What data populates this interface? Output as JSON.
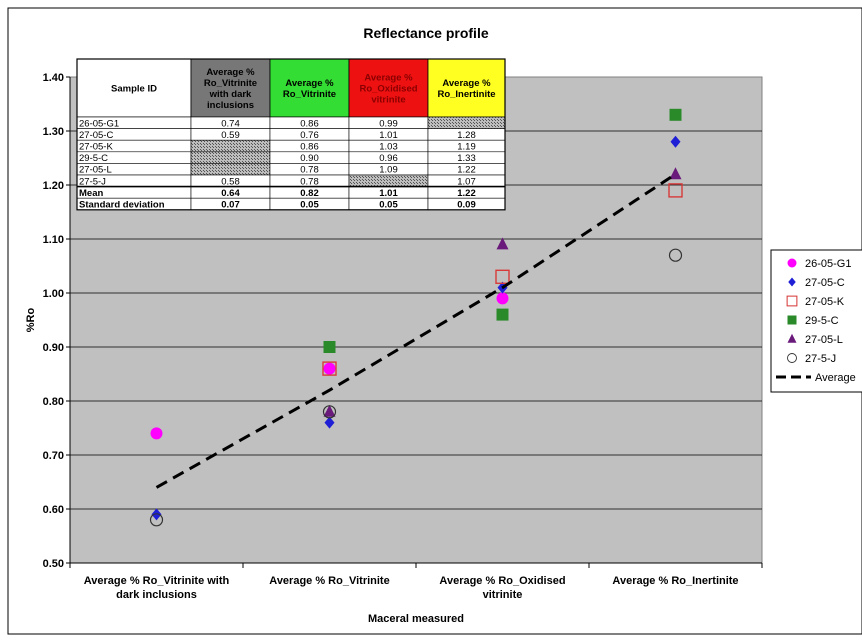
{
  "chart_data": {
    "type": "scatter",
    "title": "Reflectance profile",
    "xlabel": "Maceral measured",
    "ylabel": "%Ro",
    "ylim": [
      0.5,
      1.4
    ],
    "y_ticks": [
      "0.50",
      "0.60",
      "0.70",
      "0.80",
      "0.90",
      "1.00",
      "1.10",
      "1.20",
      "1.30",
      "1.40"
    ],
    "grid": "horizontal",
    "legend_position": "right",
    "categories": [
      [
        "Average % Ro_Vitrinite with",
        "dark inclusions"
      ],
      [
        "Average % Ro_Vitrinite"
      ],
      [
        "Average % Ro_Oxidised",
        "vitrinite"
      ],
      [
        "Average % Ro_Inertinite"
      ]
    ],
    "series": [
      {
        "name": "26-05-G1",
        "marker": "circle-filled",
        "color": "#ff00ff",
        "values": [
          0.74,
          0.86,
          0.99,
          null
        ]
      },
      {
        "name": "27-05-C",
        "marker": "diamond",
        "color": "#1f1fd6",
        "values": [
          0.59,
          0.76,
          1.01,
          1.28
        ]
      },
      {
        "name": "27-05-K",
        "marker": "square-open",
        "color": "#d83a3a",
        "values": [
          null,
          0.86,
          1.03,
          1.19
        ]
      },
      {
        "name": "29-5-C",
        "marker": "square-filled",
        "color": "#2a8a2a",
        "values": [
          null,
          0.9,
          0.96,
          1.33
        ]
      },
      {
        "name": "27-05-L",
        "marker": "triangle",
        "color": "#6a1a7a",
        "values": [
          null,
          0.78,
          1.09,
          1.22
        ]
      },
      {
        "name": "27-5-J",
        "marker": "circle-open",
        "color": "#333333",
        "values": [
          0.58,
          0.78,
          null,
          1.07
        ]
      },
      {
        "name": "Average",
        "marker": "dashed-line",
        "color": "#000000",
        "values": [
          0.64,
          0.82,
          1.01,
          1.22
        ]
      }
    ],
    "table": {
      "headers": [
        {
          "lines": [
            "Sample ID"
          ],
          "color": "#ffffff"
        },
        {
          "lines": [
            "Average %",
            "Ro_Vitrinite",
            "with dark",
            "inclusions"
          ],
          "color": "#777777"
        },
        {
          "lines": [
            "Average %",
            "Ro_Vitrinite"
          ],
          "color": "#33dd33"
        },
        {
          "lines": [
            "Average %",
            "Ro_Oxidised",
            "vitrinite"
          ],
          "color": "#ee1111"
        },
        {
          "lines": [
            "Average %",
            "Ro_Inertinite"
          ],
          "color": "#ffff22"
        }
      ],
      "rows": [
        [
          "26-05-G1",
          "0.74",
          "0.86",
          "0.99",
          ""
        ],
        [
          "27-05-C",
          "0.59",
          "0.76",
          "1.01",
          "1.28"
        ],
        [
          "27-05-K",
          "",
          "0.86",
          "1.03",
          "1.19"
        ],
        [
          "29-5-C",
          "",
          "0.90",
          "0.96",
          "1.33"
        ],
        [
          "27-05-L",
          "",
          "0.78",
          "1.09",
          "1.22"
        ],
        [
          "27-5-J",
          "0.58",
          "0.78",
          "",
          "1.07"
        ]
      ],
      "summary": [
        [
          "Mean",
          "0.64",
          "0.82",
          "1.01",
          "1.22"
        ],
        [
          "Standard deviation",
          "0.07",
          "0.05",
          "0.05",
          "0.09"
        ]
      ]
    }
  }
}
